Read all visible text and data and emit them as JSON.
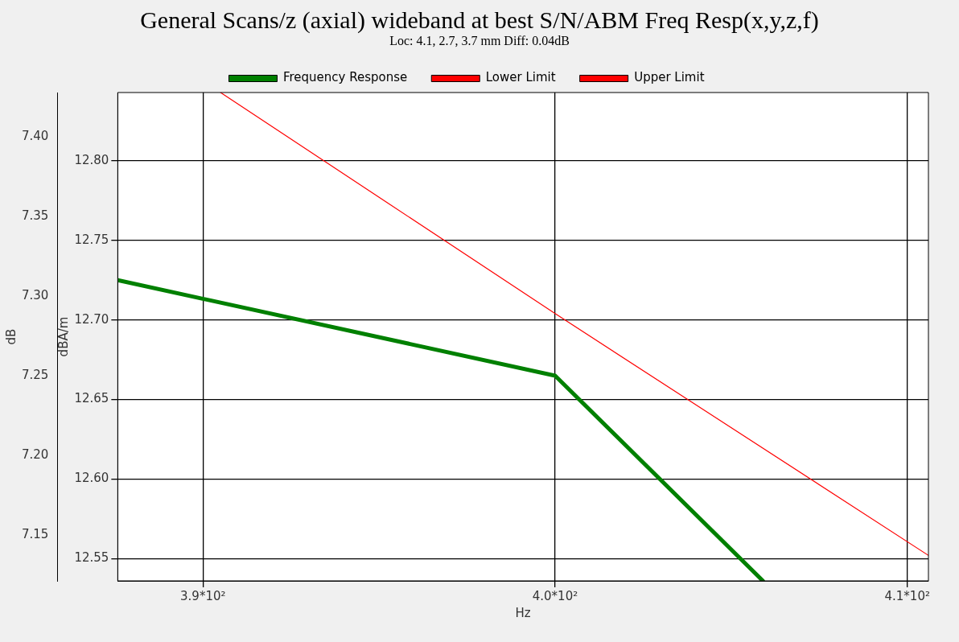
{
  "chart_data": {
    "type": "line",
    "title": "General Scans/z (axial) wideband at best S/N/ABM Freq Resp(x,y,z,f)",
    "subtitle": "Loc: 4.1, 2.7, 3.7 mm Diff: 0.04dB",
    "xlabel": "Hz",
    "ylabel": "dBA/m",
    "y2label": "dB",
    "series": [
      {
        "name": "Frequency Response",
        "color": "#008000",
        "x": [
          387.58,
          400,
          405.9
        ],
        "values": [
          12.725,
          12.665,
          12.536
        ]
      },
      {
        "name": "Lower Limit",
        "color": "#ff0000"
      },
      {
        "name": "Upper Limit",
        "color": "#ff0000",
        "x": [
          390.5,
          400,
          410.6
        ],
        "values": [
          12.843,
          12.704,
          12.552
        ]
      }
    ],
    "xlim": [
      387.58,
      410.6
    ],
    "xticks": [
      {
        "value": 390,
        "label": "3.9*10²"
      },
      {
        "value": 400,
        "label": "4.0*10²"
      },
      {
        "value": 410,
        "label": "4.1*10²"
      }
    ],
    "ylim": [
      12.536,
      12.843
    ],
    "yticks": [
      12.55,
      {
        "value": 12.6,
        "label": "12.60"
      },
      12.65,
      {
        "value": 12.7,
        "label": "12.70"
      },
      12.75,
      {
        "value": 12.8,
        "label": "12.80"
      }
    ],
    "y2lim": [
      7.121,
      7.428
    ],
    "y2ticks": [
      7.15,
      {
        "value": 7.2,
        "label": "7.20"
      },
      7.25,
      {
        "value": 7.3,
        "label": "7.30"
      },
      7.35,
      {
        "value": 7.4,
        "label": "7.40"
      }
    ],
    "grid": true,
    "legend": "top",
    "marker": "none",
    "line_style": "solid"
  }
}
